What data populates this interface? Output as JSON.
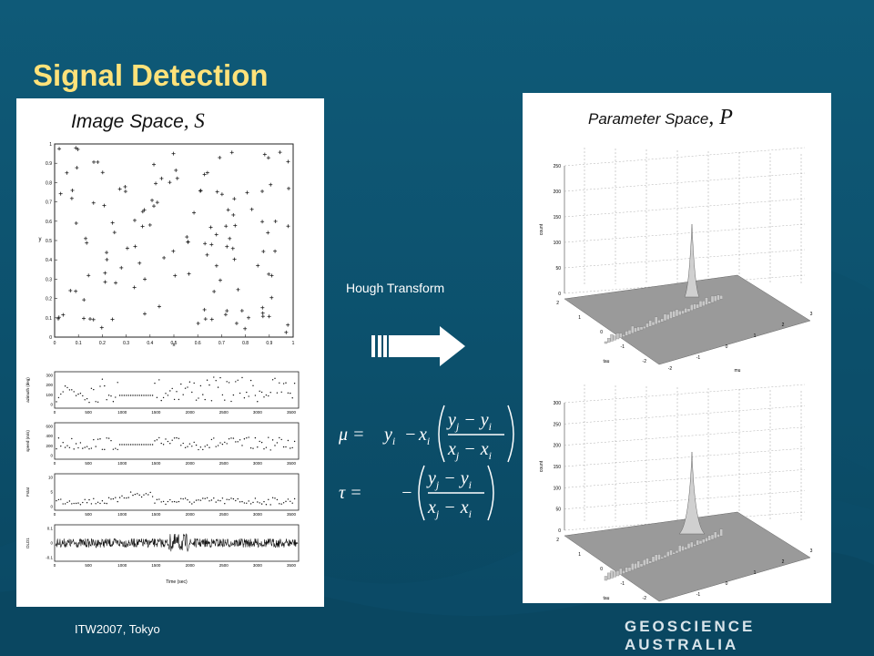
{
  "slide": {
    "title": "Signal Detection",
    "footer_left": "ITW2007, Tokyo",
    "footer_right": "GEOSCIENCE AUSTRALIA",
    "transform_label": "Hough Transform"
  },
  "left_panel": {
    "title_text": "Image Space",
    "title_symbol": ", S",
    "scatter": {
      "xlabel": "x",
      "ylabel": "y",
      "xticks": [
        "0",
        "0.1",
        "0.2",
        "0.3",
        "0.4",
        "0.5",
        "0.6",
        "0.7",
        "0.8",
        "0.9",
        "1"
      ],
      "yticks": [
        "0",
        "0.1",
        "0.2",
        "0.3",
        "0.4",
        "0.5",
        "0.6",
        "0.7",
        "0.8",
        "0.9",
        "1"
      ]
    },
    "strips": [
      {
        "ylabel": "azimuth (deg)",
        "yticks": [
          "300",
          "200",
          "100",
          "0"
        ]
      },
      {
        "ylabel": "speed (m/s)",
        "yticks": [
          "600",
          "400",
          "200",
          "0"
        ]
      },
      {
        "ylabel": "Fstat",
        "yticks": [
          "10",
          "5",
          "0"
        ]
      },
      {
        "ylabel": "DLD1",
        "yticks": [
          "0.1",
          "0",
          "-0.1"
        ]
      }
    ],
    "time_ticks": [
      "0",
      "500",
      "1000",
      "1500",
      "2000",
      "2500",
      "3000",
      "3500"
    ],
    "time_label": "Time (sec)"
  },
  "right_panel": {
    "title_text": "Parameter Space",
    "title_symbol": ", P",
    "plot1": {
      "zlabel": "count",
      "zticks": [
        "250",
        "200",
        "150",
        "100",
        "50",
        "0"
      ],
      "xlabel": "mu",
      "ylabel": "tau",
      "tau_ticks": [
        "2",
        "1",
        "0",
        "-1",
        "-2"
      ],
      "mu_ticks": [
        "-2",
        "-1",
        "0",
        "1",
        "2",
        "3"
      ]
    },
    "plot2": {
      "zlabel": "count",
      "zticks": [
        "300",
        "250",
        "200",
        "150",
        "100",
        "50",
        "0"
      ],
      "xlabel": "mu",
      "ylabel": "tau",
      "tau_ticks": [
        "2",
        "1",
        "0",
        "-1",
        "-2"
      ],
      "mu_ticks": [
        "-2",
        "-1",
        "0",
        "1",
        "2",
        "3"
      ]
    }
  },
  "equations": {
    "mu_lhs": "μ =",
    "tau_lhs": "τ =",
    "y_i": "y",
    "x_i": "x",
    "minus": "−",
    "num": "y  − y",
    "den": "x  − x",
    "sub_i": "i",
    "sub_j": "j"
  },
  "colors": {
    "title": "#ffe27a",
    "background": "#0d5470",
    "surface": "#9a9a9a"
  }
}
